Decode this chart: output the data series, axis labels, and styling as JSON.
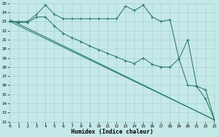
{
  "xlabel": "Humidex (Indice chaleur)",
  "bg_color": "#c5e8e8",
  "grid_color": "#a8d0d0",
  "line_color": "#2a7a6a",
  "xlim": [
    0,
    23
  ],
  "ylim": [
    12,
    25
  ],
  "xticks": [
    0,
    1,
    2,
    3,
    4,
    5,
    6,
    7,
    8,
    9,
    10,
    11,
    12,
    13,
    14,
    15,
    16,
    17,
    18,
    19,
    20,
    21,
    22,
    23
  ],
  "yticks": [
    12,
    13,
    14,
    15,
    16,
    17,
    18,
    19,
    20,
    21,
    22,
    23,
    24,
    25
  ],
  "line1_x": [
    0,
    1,
    2,
    3,
    4,
    5,
    6,
    7,
    8,
    9,
    10,
    11,
    12,
    13,
    14,
    15,
    16,
    17,
    18,
    19,
    20,
    21,
    22,
    23
  ],
  "line1_y": [
    23.0,
    23.0,
    23.0,
    23.8,
    24.8,
    23.8,
    23.3,
    23.3,
    23.3,
    23.3,
    23.3,
    23.3,
    23.3,
    24.7,
    24.2,
    24.8,
    23.5,
    23.0,
    23.2,
    18.9,
    21.0,
    15.9,
    15.5,
    12.2
  ],
  "line2_x": [
    0,
    1,
    2,
    3,
    4,
    5,
    6,
    7,
    8,
    9,
    10,
    11,
    12,
    13,
    14,
    15,
    16,
    17,
    18,
    19,
    20,
    21,
    22,
    23
  ],
  "line2_y": [
    23.0,
    22.9,
    22.9,
    23.5,
    23.5,
    22.5,
    21.7,
    21.2,
    20.8,
    20.3,
    19.9,
    19.5,
    19.1,
    18.7,
    18.4,
    19.0,
    18.3,
    18.0,
    18.0,
    18.9,
    16.0,
    15.9,
    14.5,
    12.2
  ],
  "line3_x": [
    0,
    23
  ],
  "line3_y": [
    23.0,
    12.2
  ],
  "line4_x": [
    0,
    23
  ],
  "line4_y": [
    23.2,
    12.2
  ]
}
